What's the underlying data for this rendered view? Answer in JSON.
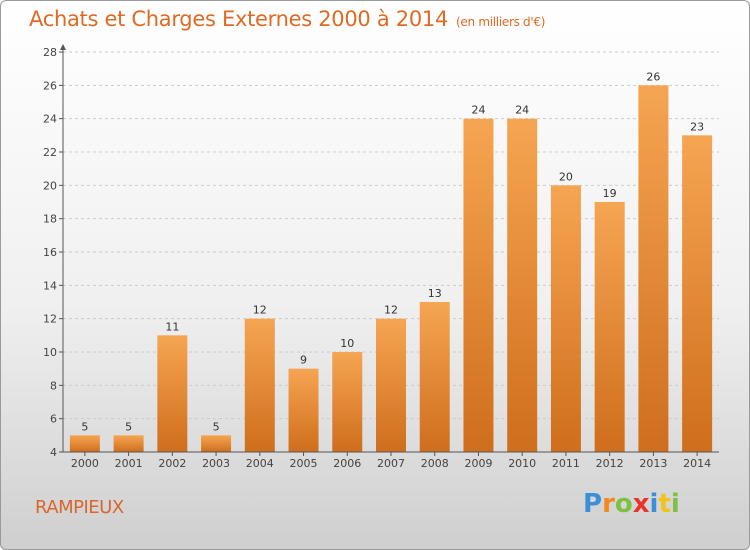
{
  "title": "Achats et Charges Externes 2000 à 2014",
  "unit": "(en milliers d'€)",
  "commune": "RAMPIEUX",
  "brand": {
    "letters": [
      "P",
      "r",
      "o",
      "x",
      "i",
      "t",
      "i"
    ],
    "colors": [
      "#3a8fd8",
      "#f08a1c",
      "#7dc142",
      "#e8332a",
      "#3a8fd8",
      "#f3c21a",
      "#7dc142"
    ]
  },
  "colors": {
    "bar_top": "#f6a552",
    "bar_bottom": "#cf6e1c",
    "title": "#e06a23",
    "axis": "#555555",
    "grid": "#cccccc"
  },
  "chart_data": {
    "type": "bar",
    "title": "Achats et Charges Externes 2000 à 2014",
    "subtitle": "(en milliers d'€)",
    "xlabel": "",
    "ylabel": "",
    "ylim": [
      4,
      28
    ],
    "yticks": [
      4,
      6,
      8,
      10,
      12,
      14,
      16,
      18,
      20,
      22,
      24,
      26,
      28
    ],
    "grid": "horizontal dashed",
    "categories": [
      "2000",
      "2001",
      "2002",
      "2003",
      "2004",
      "2005",
      "2006",
      "2007",
      "2008",
      "2009",
      "2010",
      "2011",
      "2012",
      "2013",
      "2014"
    ],
    "values": [
      5,
      5,
      11,
      5,
      12,
      9,
      10,
      12,
      13,
      24,
      24,
      20,
      19,
      26,
      23
    ]
  }
}
